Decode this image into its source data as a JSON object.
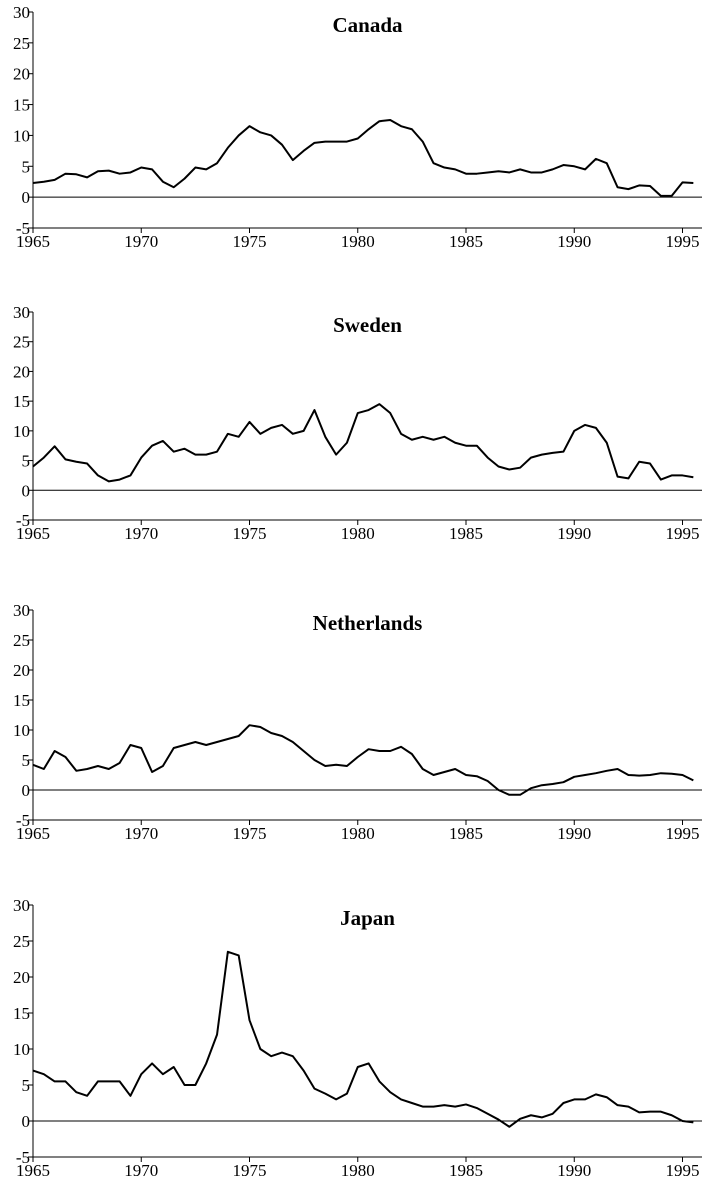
{
  "chart_data": [
    {
      "type": "line",
      "title": "Canada",
      "x": [
        1965,
        1965.5,
        1966,
        1966.5,
        1967,
        1967.5,
        1968,
        1968.5,
        1969,
        1969.5,
        1970,
        1970.5,
        1971,
        1971.5,
        1972,
        1972.5,
        1973,
        1973.5,
        1974,
        1974.5,
        1975,
        1975.5,
        1976,
        1976.5,
        1977,
        1977.5,
        1978,
        1978.5,
        1979,
        1979.5,
        1980,
        1980.5,
        1981,
        1981.5,
        1982,
        1982.5,
        1983,
        1983.5,
        1984,
        1984.5,
        1985,
        1985.5,
        1986,
        1986.5,
        1987,
        1987.5,
        1988,
        1988.5,
        1989,
        1989.5,
        1990,
        1990.5,
        1991,
        1991.5,
        1992,
        1992.5,
        1993,
        1993.5,
        1994,
        1994.5,
        1995,
        1995.5
      ],
      "series": [
        {
          "color": "#000000",
          "values": [
            2.3,
            2.5,
            2.8,
            3.8,
            3.7,
            3.2,
            4.2,
            4.3,
            3.8,
            4.0,
            4.8,
            4.5,
            2.5,
            1.6,
            3.0,
            4.8,
            4.5,
            5.5,
            8.0,
            10.0,
            11.5,
            10.5,
            10.0,
            8.5,
            6.0,
            7.5,
            8.8,
            9.0,
            9.0,
            9.0,
            9.5,
            11.0,
            12.3,
            12.5,
            11.5,
            11.0,
            9.0,
            5.5,
            4.8,
            4.5,
            3.8,
            3.8,
            4.0,
            4.2,
            4.0,
            4.5,
            4.0,
            4.0,
            4.5,
            5.2,
            5.0,
            4.5,
            6.2,
            5.5,
            1.6,
            1.3,
            1.9,
            1.8,
            0.2,
            0.2,
            2.4,
            2.3
          ]
        }
      ],
      "xlim": [
        1965,
        1995.9
      ],
      "xticks": [
        1965,
        1970,
        1975,
        1980,
        1985,
        1990,
        1995
      ],
      "ylim": [
        -5,
        30
      ],
      "yticks": [
        -5,
        0,
        5,
        10,
        15,
        20,
        25,
        30
      ]
    },
    {
      "type": "line",
      "title": "Sweden",
      "x": [
        1965,
        1965.5,
        1966,
        1966.5,
        1967,
        1967.5,
        1968,
        1968.5,
        1969,
        1969.5,
        1970,
        1970.5,
        1971,
        1971.5,
        1972,
        1972.5,
        1973,
        1973.5,
        1974,
        1974.5,
        1975,
        1975.5,
        1976,
        1976.5,
        1977,
        1977.5,
        1978,
        1978.5,
        1979,
        1979.5,
        1980,
        1980.5,
        1981,
        1981.5,
        1982,
        1982.5,
        1983,
        1983.5,
        1984,
        1984.5,
        1985,
        1985.5,
        1986,
        1986.5,
        1987,
        1987.5,
        1988,
        1988.5,
        1989,
        1989.5,
        1990,
        1990.5,
        1991,
        1991.5,
        1992,
        1992.5,
        1993,
        1993.5,
        1994,
        1994.5,
        1995,
        1995.5
      ],
      "series": [
        {
          "color": "#000000",
          "values": [
            4.0,
            5.5,
            7.4,
            5.2,
            4.8,
            4.5,
            2.5,
            1.5,
            1.8,
            2.5,
            5.5,
            7.5,
            8.3,
            6.5,
            7.0,
            6.0,
            6.0,
            6.5,
            9.5,
            9.0,
            11.5,
            9.5,
            10.5,
            11.0,
            9.5,
            10.0,
            13.5,
            9.0,
            6.0,
            8.0,
            13.0,
            13.5,
            14.5,
            13.0,
            9.5,
            8.5,
            9.0,
            8.5,
            9.0,
            8.0,
            7.5,
            7.5,
            5.5,
            4.0,
            3.5,
            3.8,
            5.5,
            6.0,
            6.3,
            6.5,
            10.0,
            11.0,
            10.5,
            8.0,
            2.3,
            2.0,
            4.8,
            4.5,
            1.8,
            2.5,
            2.5,
            2.2
          ]
        }
      ],
      "xlim": [
        1965,
        1995.9
      ],
      "xticks": [
        1965,
        1970,
        1975,
        1980,
        1985,
        1990,
        1995
      ],
      "ylim": [
        -5,
        30
      ],
      "yticks": [
        -5,
        0,
        5,
        10,
        15,
        20,
        25,
        30
      ]
    },
    {
      "type": "line",
      "title": "Netherlands",
      "x": [
        1965,
        1965.5,
        1966,
        1966.5,
        1967,
        1967.5,
        1968,
        1968.5,
        1969,
        1969.5,
        1970,
        1970.5,
        1971,
        1971.5,
        1972,
        1972.5,
        1973,
        1973.5,
        1974,
        1974.5,
        1975,
        1975.5,
        1976,
        1976.5,
        1977,
        1977.5,
        1978,
        1978.5,
        1979,
        1979.5,
        1980,
        1980.5,
        1981,
        1981.5,
        1982,
        1982.5,
        1983,
        1983.5,
        1984,
        1984.5,
        1985,
        1985.5,
        1986,
        1986.5,
        1987,
        1987.5,
        1988,
        1988.5,
        1989,
        1989.5,
        1990,
        1990.5,
        1991,
        1991.5,
        1992,
        1992.5,
        1993,
        1993.5,
        1994,
        1994.5,
        1995,
        1995.5
      ],
      "series": [
        {
          "color": "#000000",
          "values": [
            4.2,
            3.5,
            6.5,
            5.5,
            3.2,
            3.5,
            4.0,
            3.5,
            4.5,
            7.5,
            7.0,
            3.0,
            4.0,
            7.0,
            7.5,
            8.0,
            7.5,
            8.0,
            8.5,
            9.0,
            10.8,
            10.5,
            9.5,
            9.0,
            8.0,
            6.5,
            5.0,
            4.0,
            4.2,
            4.0,
            5.5,
            6.8,
            6.5,
            6.5,
            7.2,
            6.0,
            3.5,
            2.5,
            3.0,
            3.5,
            2.5,
            2.3,
            1.5,
            0,
            -0.8,
            -0.8,
            0.3,
            0.8,
            1.0,
            1.3,
            2.2,
            2.5,
            2.8,
            3.2,
            3.5,
            2.5,
            2.4,
            2.5,
            2.8,
            2.7,
            2.5,
            1.6
          ]
        }
      ],
      "xlim": [
        1965,
        1995.9
      ],
      "xticks": [
        1965,
        1970,
        1975,
        1980,
        1985,
        1990,
        1995
      ],
      "ylim": [
        -5,
        30
      ],
      "yticks": [
        -5,
        0,
        5,
        10,
        15,
        20,
        25,
        30
      ]
    },
    {
      "type": "line",
      "title": "Japan",
      "x": [
        1965,
        1965.5,
        1966,
        1966.5,
        1967,
        1967.5,
        1968,
        1968.5,
        1969,
        1969.5,
        1970,
        1970.5,
        1971,
        1971.5,
        1972,
        1972.5,
        1973,
        1973.5,
        1974,
        1974.5,
        1975,
        1975.5,
        1976,
        1976.5,
        1977,
        1977.5,
        1978,
        1978.5,
        1979,
        1979.5,
        1980,
        1980.5,
        1981,
        1981.5,
        1982,
        1982.5,
        1983,
        1983.5,
        1984,
        1984.5,
        1985,
        1985.5,
        1986,
        1986.5,
        1987,
        1987.5,
        1988,
        1988.5,
        1989,
        1989.5,
        1990,
        1990.5,
        1991,
        1991.5,
        1992,
        1992.5,
        1993,
        1993.5,
        1994,
        1994.5,
        1995,
        1995.5
      ],
      "series": [
        {
          "color": "#000000",
          "values": [
            7.0,
            6.5,
            5.5,
            5.5,
            4.0,
            3.5,
            5.5,
            5.5,
            5.5,
            3.5,
            6.5,
            8.0,
            6.5,
            7.5,
            5.0,
            5.0,
            8.0,
            12.0,
            23.5,
            23.0,
            14.0,
            10.0,
            9.0,
            9.5,
            9.0,
            7.0,
            4.5,
            3.8,
            3.0,
            3.8,
            7.5,
            8.0,
            5.5,
            4.0,
            3.0,
            2.5,
            2.0,
            2.0,
            2.2,
            2.0,
            2.3,
            1.8,
            1.0,
            0.2,
            -0.8,
            0.3,
            0.8,
            0.5,
            1.0,
            2.5,
            3.0,
            3.0,
            3.7,
            3.3,
            2.2,
            2.0,
            1.2,
            1.3,
            1.3,
            0.8,
            0,
            -0.2
          ]
        }
      ],
      "xlim": [
        1965,
        1995.9
      ],
      "xticks": [
        1965,
        1970,
        1975,
        1980,
        1985,
        1990,
        1995
      ],
      "ylim": [
        -5,
        30
      ],
      "yticks": [
        -5,
        0,
        5,
        10,
        15,
        20,
        25,
        30
      ]
    }
  ]
}
